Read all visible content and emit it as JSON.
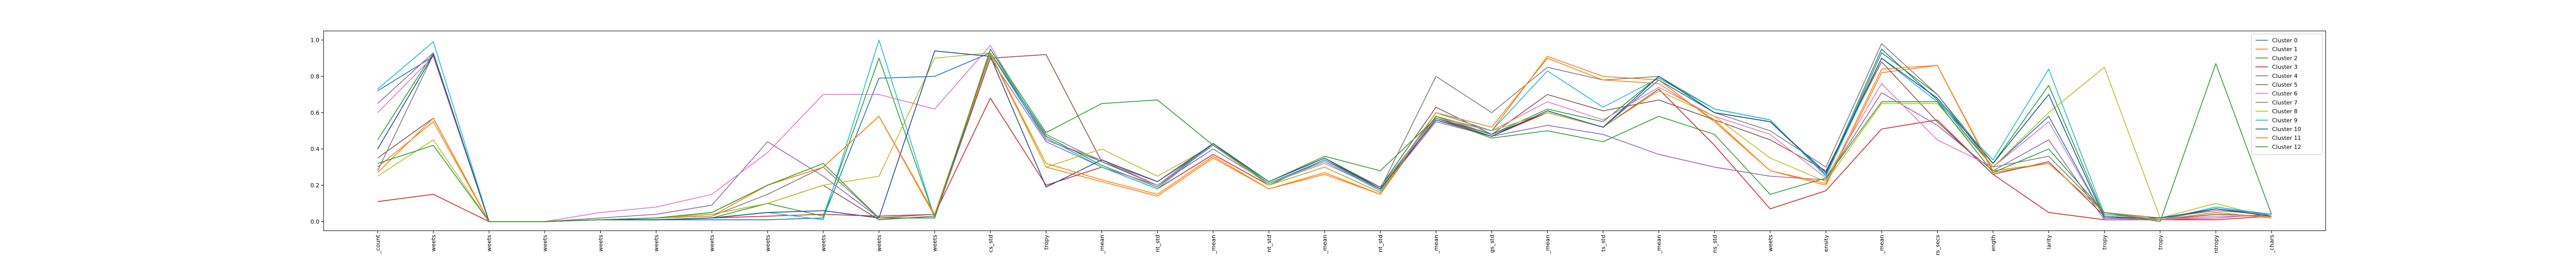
{
  "chart_data": {
    "type": "line",
    "title": "",
    "xlabel": "",
    "ylabel": "",
    "ylim": [
      -0.05,
      1.05
    ],
    "yticks": [
      0.0,
      0.2,
      0.4,
      0.6,
      0.8,
      1.0
    ],
    "ytick_labels": [
      "0.0",
      "0.2",
      "0.4",
      "0.6",
      "0.8",
      "1.0"
    ],
    "grid": false,
    "legend": "top-right",
    "categories": [
      "_count",
      "weets",
      "weets",
      "weets",
      "weets",
      "weets",
      "weets",
      "weets",
      "weets",
      "weets",
      "weets",
      "cs_std",
      "tropy",
      "_mean",
      "nt_std",
      "_mean",
      "nt_std",
      "_mean",
      "nt_std",
      "_mean",
      "gs_std",
      "_mean",
      "ts_std",
      "_mean",
      "ns_std",
      "weets",
      "ensity",
      "_mean",
      "rs_secs",
      "ength",
      "larity",
      "tropy",
      "tropy",
      "ntropy",
      "_chars"
    ],
    "series": [
      {
        "name": "Cluster 0",
        "color": "#1f77b4",
        "values": [
          0.72,
          0.91,
          0.0,
          0.0,
          0.01,
          0.01,
          0.01,
          0.01,
          0.02,
          0.79,
          0.8,
          0.93,
          0.45,
          0.33,
          0.2,
          0.42,
          0.21,
          0.34,
          0.18,
          0.57,
          0.48,
          0.6,
          0.52,
          0.78,
          0.6,
          0.55,
          0.26,
          0.95,
          0.67,
          0.3,
          0.58,
          0.02,
          0.01,
          0.07,
          0.04
        ]
      },
      {
        "name": "Cluster 1",
        "color": "#ff7f0e",
        "values": [
          0.3,
          0.55,
          0.0,
          0.0,
          0.01,
          0.02,
          0.05,
          0.2,
          0.3,
          0.58,
          0.03,
          0.92,
          0.3,
          0.22,
          0.14,
          0.35,
          0.18,
          0.26,
          0.15,
          0.58,
          0.5,
          0.91,
          0.8,
          0.78,
          0.55,
          0.28,
          0.2,
          0.82,
          0.86,
          0.27,
          0.32,
          0.05,
          0.01,
          0.05,
          0.02
        ]
      },
      {
        "name": "Cluster 2",
        "color": "#2ca02c",
        "values": [
          0.45,
          0.93,
          0.0,
          0.0,
          0.01,
          0.01,
          0.02,
          0.1,
          0.03,
          0.9,
          0.02,
          0.93,
          0.47,
          0.31,
          0.19,
          0.43,
          0.22,
          0.35,
          0.19,
          0.58,
          0.48,
          0.62,
          0.55,
          0.8,
          0.62,
          0.56,
          0.25,
          0.93,
          0.7,
          0.32,
          0.75,
          0.03,
          0.01,
          0.08,
          0.04
        ]
      },
      {
        "name": "Cluster 3",
        "color": "#d62728",
        "values": [
          0.11,
          0.15,
          0.0,
          0.0,
          0.01,
          0.01,
          0.02,
          0.03,
          0.04,
          0.03,
          0.04,
          0.68,
          0.2,
          0.3,
          0.18,
          0.37,
          0.2,
          0.3,
          0.16,
          0.57,
          0.47,
          0.6,
          0.52,
          0.73,
          0.42,
          0.07,
          0.17,
          0.51,
          0.56,
          0.26,
          0.05,
          0.01,
          0.01,
          0.01,
          0.03
        ]
      },
      {
        "name": "Cluster 4",
        "color": "#9467bd",
        "values": [
          0.65,
          0.93,
          0.0,
          0.0,
          0.02,
          0.04,
          0.09,
          0.44,
          0.25,
          0.02,
          0.02,
          0.9,
          0.44,
          0.3,
          0.2,
          0.4,
          0.21,
          0.34,
          0.17,
          0.55,
          0.47,
          0.53,
          0.48,
          0.37,
          0.3,
          0.25,
          0.23,
          0.71,
          0.53,
          0.28,
          0.45,
          0.01,
          0.01,
          0.02,
          0.04
        ]
      },
      {
        "name": "Cluster 5",
        "color": "#8c564b",
        "values": [
          0.35,
          0.57,
          0.0,
          0.0,
          0.01,
          0.02,
          0.04,
          0.1,
          0.2,
          0.01,
          0.03,
          0.9,
          0.92,
          0.33,
          0.2,
          0.43,
          0.2,
          0.34,
          0.19,
          0.63,
          0.48,
          0.7,
          0.61,
          0.67,
          0.56,
          0.45,
          0.28,
          0.88,
          0.55,
          0.26,
          0.33,
          0.03,
          0.01,
          0.04,
          0.03
        ]
      },
      {
        "name": "Cluster 6",
        "color": "#e377c2",
        "values": [
          0.6,
          0.91,
          0.0,
          0.0,
          0.05,
          0.08,
          0.15,
          0.38,
          0.7,
          0.7,
          0.62,
          0.97,
          0.45,
          0.34,
          0.2,
          0.42,
          0.21,
          0.32,
          0.18,
          0.57,
          0.5,
          0.66,
          0.56,
          0.74,
          0.58,
          0.48,
          0.24,
          0.76,
          0.45,
          0.3,
          0.55,
          0.02,
          0.01,
          0.03,
          0.03
        ]
      },
      {
        "name": "Cluster 7",
        "color": "#7f7f7f",
        "values": [
          0.28,
          0.92,
          0.0,
          0.0,
          0.01,
          0.02,
          0.03,
          0.15,
          0.3,
          0.02,
          0.04,
          0.93,
          0.48,
          0.33,
          0.22,
          0.42,
          0.21,
          0.34,
          0.18,
          0.8,
          0.6,
          0.85,
          0.78,
          0.8,
          0.6,
          0.5,
          0.3,
          0.98,
          0.7,
          0.3,
          0.36,
          0.05,
          0.02,
          0.06,
          0.04
        ]
      },
      {
        "name": "Cluster 8",
        "color": "#bcbd22",
        "values": [
          0.25,
          0.45,
          0.0,
          0.0,
          0.01,
          0.02,
          0.04,
          0.1,
          0.2,
          0.25,
          0.9,
          0.93,
          0.3,
          0.4,
          0.25,
          0.42,
          0.2,
          0.3,
          0.16,
          0.6,
          0.5,
          0.6,
          0.52,
          0.72,
          0.58,
          0.35,
          0.22,
          0.65,
          0.65,
          0.3,
          0.6,
          0.85,
          0.02,
          0.1,
          0.02
        ]
      },
      {
        "name": "Cluster 9",
        "color": "#17becf",
        "values": [
          0.73,
          0.99,
          0.0,
          0.0,
          0.01,
          0.01,
          0.02,
          0.05,
          0.01,
          1.0,
          0.02,
          0.95,
          0.46,
          0.3,
          0.18,
          0.43,
          0.21,
          0.33,
          0.17,
          0.6,
          0.5,
          0.83,
          0.63,
          0.79,
          0.62,
          0.56,
          0.25,
          0.9,
          0.66,
          0.34,
          0.84,
          0.04,
          0.01,
          0.08,
          0.04
        ]
      },
      {
        "name": "Cluster 10",
        "color": "#1f4e99",
        "values": [
          0.4,
          0.92,
          0.0,
          0.0,
          0.01,
          0.01,
          0.02,
          0.05,
          0.06,
          0.02,
          0.94,
          0.91,
          0.19,
          0.34,
          0.22,
          0.43,
          0.22,
          0.35,
          0.18,
          0.56,
          0.47,
          0.61,
          0.52,
          0.8,
          0.6,
          0.55,
          0.27,
          0.9,
          0.68,
          0.32,
          0.7,
          0.02,
          0.02,
          0.07,
          0.03
        ]
      },
      {
        "name": "Cluster 11",
        "color": "#ff7f0e",
        "values": [
          0.27,
          0.57,
          0.0,
          0.0,
          0.01,
          0.02,
          0.03,
          0.2,
          0.3,
          0.58,
          0.04,
          0.92,
          0.32,
          0.23,
          0.15,
          0.36,
          0.18,
          0.27,
          0.15,
          0.6,
          0.52,
          0.9,
          0.78,
          0.76,
          0.56,
          0.28,
          0.21,
          0.84,
          0.86,
          0.28,
          0.32,
          0.05,
          0.01,
          0.05,
          0.02
        ]
      },
      {
        "name": "Cluster 12",
        "color": "#2ca02c",
        "values": [
          0.32,
          0.42,
          0.0,
          0.0,
          0.01,
          0.02,
          0.05,
          0.2,
          0.32,
          0.02,
          0.02,
          0.95,
          0.49,
          0.65,
          0.67,
          0.42,
          0.22,
          0.36,
          0.28,
          0.57,
          0.46,
          0.5,
          0.44,
          0.58,
          0.48,
          0.15,
          0.24,
          0.66,
          0.66,
          0.27,
          0.4,
          0.05,
          0.0,
          0.87,
          0.04
        ]
      }
    ]
  }
}
